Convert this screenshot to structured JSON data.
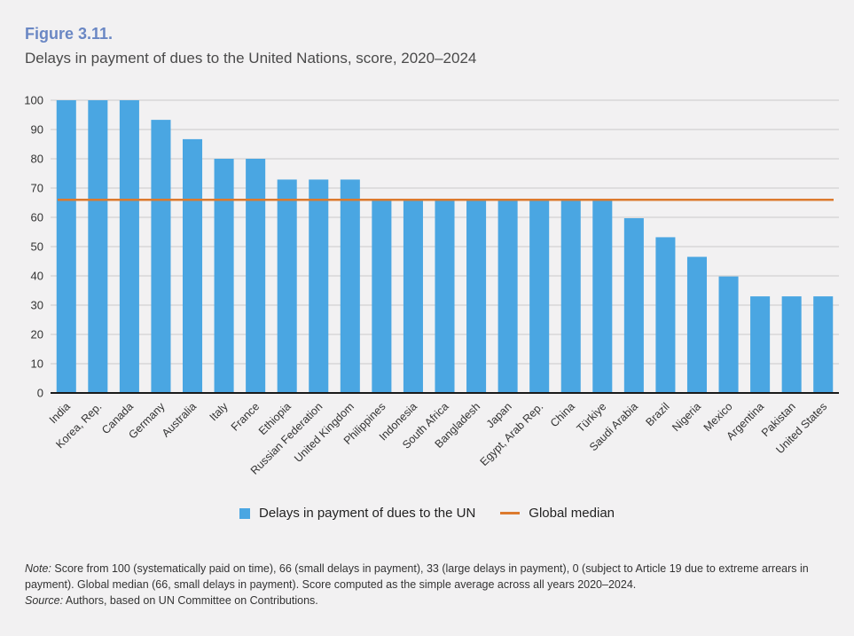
{
  "figure": {
    "label": "Figure 3.11.",
    "title": "Delays in payment of dues to the United Nations, score, 2020–2024"
  },
  "colors": {
    "bar": "#4aa6e2",
    "median": "#dc7a2e",
    "grid": "#c9c9c9",
    "axis": "#1a1a1a",
    "text": "#333333"
  },
  "chart_data": {
    "type": "bar",
    "title": "Delays in payment of dues to the United Nations, score, 2020–2024",
    "xlabel": "",
    "ylabel": "",
    "ylim": [
      0,
      100
    ],
    "yticks": [
      0,
      10,
      20,
      30,
      40,
      50,
      60,
      70,
      80,
      90,
      100
    ],
    "grid": true,
    "categories": [
      "India",
      "Korea, Rep.",
      "Canada",
      "Germany",
      "Australia",
      "Italy",
      "France",
      "Ethiopia",
      "Russian Federation",
      "United Kingdom",
      "Philippines",
      "Indonesia",
      "South Africa",
      "Bangladesh",
      "Japan",
      "Egypt, Arab Rep.",
      "China",
      "Türkiye",
      "Saudi Arabia",
      "Brazil",
      "Nigeria",
      "Mexico",
      "Argentina",
      "Pakistan",
      "United States"
    ],
    "series": [
      {
        "name": "Delays in payment of dues to the UN",
        "values": [
          100,
          100,
          100,
          93.3,
          86.7,
          80,
          80,
          72.9,
          72.9,
          72.9,
          66,
          66,
          66,
          66,
          66,
          66,
          66,
          66,
          59.7,
          53.2,
          46.5,
          39.8,
          33,
          33,
          33
        ]
      }
    ],
    "reference_lines": [
      {
        "name": "Global median",
        "value": 66
      }
    ],
    "legend": [
      "Delays in payment of dues to the UN",
      "Global median"
    ],
    "legend_position": "bottom"
  },
  "notes": {
    "note_label": "Note:",
    "note_text": " Score from 100 (systematically paid on time), 66 (small delays in payment), 33 (large delays in payment), 0 (subject to Article 19 due to extreme arrears in payment). Global median (66, small delays in payment). Score computed as the simple average across all years 2020–2024.",
    "source_label": "Source:",
    "source_text": " Authors, based on UN Committee on Contributions."
  }
}
